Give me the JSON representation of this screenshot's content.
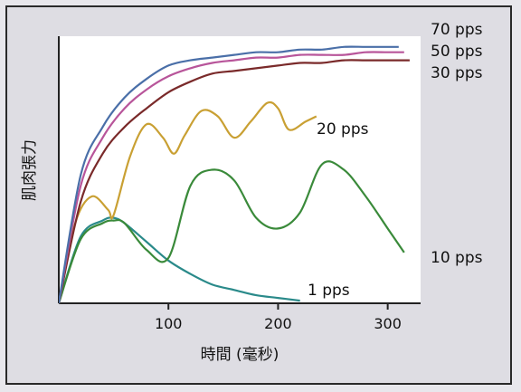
{
  "chart_data": {
    "type": "line",
    "xlabel": "時間 (毫秒)",
    "ylabel": "肌肉張力",
    "x_ticks": [
      100,
      200,
      300
    ],
    "xlim": [
      0,
      330
    ],
    "ylim": [
      0,
      100
    ],
    "grid": false,
    "legend": "inline labels at right",
    "series": [
      {
        "name": "70 pps",
        "color": "#4a6fa8",
        "x": [
          0,
          20,
          40,
          60,
          80,
          100,
          120,
          140,
          160,
          180,
          200,
          220,
          240,
          260,
          280,
          300,
          310
        ],
        "y": [
          0,
          48,
          66,
          77,
          84,
          89,
          91,
          92,
          93,
          94,
          94,
          95,
          95,
          96,
          96,
          96,
          96
        ]
      },
      {
        "name": "50 pps",
        "color": "#b8559a",
        "x": [
          0,
          20,
          40,
          60,
          80,
          100,
          120,
          140,
          160,
          180,
          200,
          220,
          240,
          260,
          280,
          300,
          315
        ],
        "y": [
          0,
          44,
          62,
          73,
          80,
          85,
          88,
          90,
          91,
          92,
          92,
          93,
          93,
          93,
          94,
          94,
          94
        ]
      },
      {
        "name": "30 pps",
        "color": "#7a2a2a",
        "x": [
          0,
          20,
          40,
          60,
          80,
          100,
          120,
          140,
          160,
          180,
          200,
          220,
          240,
          260,
          280,
          300,
          320
        ],
        "y": [
          0,
          38,
          56,
          66,
          73,
          79,
          83,
          86,
          87,
          88,
          89,
          90,
          90,
          91,
          91,
          91,
          91
        ]
      },
      {
        "name": "20 pps",
        "color": "#c9a033",
        "x": [
          0,
          15,
          30,
          45,
          50,
          65,
          80,
          95,
          105,
          115,
          130,
          145,
          160,
          175,
          190,
          200,
          210,
          225,
          235
        ],
        "y": [
          0,
          30,
          40,
          35,
          33,
          55,
          67,
          62,
          56,
          63,
          72,
          70,
          62,
          68,
          75,
          73,
          65,
          68,
          70
        ]
      },
      {
        "name": "10 pps",
        "color": "#3a8a3a",
        "x": [
          0,
          20,
          40,
          50,
          60,
          80,
          100,
          120,
          140,
          160,
          180,
          200,
          220,
          240,
          260,
          280,
          300,
          315
        ],
        "y": [
          0,
          24,
          30,
          31,
          30,
          20,
          17,
          44,
          50,
          46,
          32,
          28,
          34,
          52,
          50,
          40,
          28,
          19
        ]
      },
      {
        "name": "1 pps",
        "color": "#2a8a8a",
        "x": [
          0,
          20,
          40,
          50,
          60,
          80,
          100,
          120,
          140,
          160,
          180,
          200,
          220
        ],
        "y": [
          0,
          25,
          31,
          32,
          30,
          23,
          16,
          11,
          7,
          5,
          3,
          2,
          1
        ]
      }
    ]
  }
}
